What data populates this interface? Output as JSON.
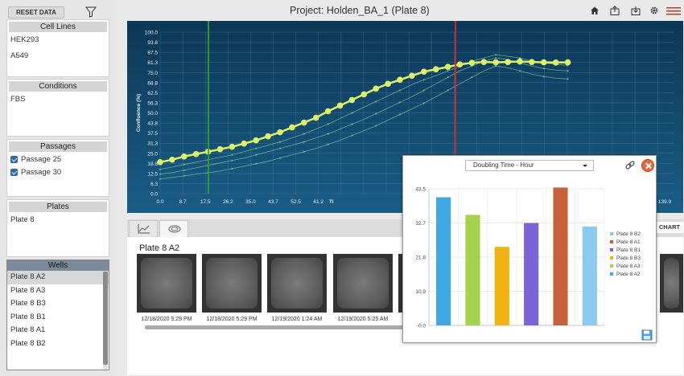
{
  "sidebar": {
    "reset_label": "RESET DATA",
    "cell_lines": {
      "title": "Cell Lines",
      "items": [
        "HEK293",
        "A549"
      ]
    },
    "conditions": {
      "title": "Conditions",
      "items": [
        "FBS"
      ]
    },
    "passages": {
      "title": "Passages",
      "items": [
        "Passage 25",
        "Passage 30"
      ]
    },
    "plates": {
      "title": "Plates",
      "items": [
        "Plate 8"
      ]
    },
    "wells": {
      "title": "Wells",
      "items": [
        "Plate 8 A2",
        "Plate 8 A3",
        "Plate 8 B3",
        "Plate 8 B1",
        "Plate 8 A1",
        "Plate 8 B2"
      ],
      "selected": "Plate 8 A2"
    }
  },
  "header": {
    "title": "Project: Holden_BA_1 (Plate 8)",
    "icons": [
      "home-icon",
      "export-icon",
      "download-icon",
      "settings-icon",
      "menu-icon"
    ]
  },
  "main_chart": {
    "ylabel": "Confluence (%)",
    "xlabel_partial": "Ti",
    "y_ticks": [
      "100.0",
      "93.8",
      "87.5",
      "81.3",
      "75.0",
      "68.8",
      "62.5",
      "56.3",
      "50.0",
      "43.8",
      "37.5",
      "31.3",
      "25.0",
      "18.8",
      "12.5",
      "6.3",
      "0.0"
    ],
    "x_ticks": [
      "0.0",
      "8.7",
      "17.5",
      "26.2",
      "35.0",
      "43.7",
      "52.5",
      "61.2"
    ],
    "x_tick_last": "139.9",
    "colors": {
      "primary": "#ddf06a",
      "secondary": "#8fd49b",
      "green_marker": "#2aa52a",
      "red_marker": "#e02424"
    }
  },
  "lower": {
    "tabs": [
      "chart-tab-icon",
      "image-tab-icon"
    ],
    "well_label": "Plate 8 A2",
    "chart_button": "CHART",
    "timestamps": [
      "12/18/2020 5:29 PM",
      "12/18/2020 5:29 PM",
      "12/19/2020 1:24 AM",
      "12/19/2020 5:25 AM"
    ]
  },
  "popup": {
    "metric_selected": "Doubling Time - Hour",
    "y_ticks": [
      "43.5",
      "32.7",
      "21.8",
      "10.9",
      "-0.0"
    ]
  },
  "chart_data": {
    "type": "bar",
    "title": "",
    "categories": [
      "Plate 8 A2",
      "Plate 8 A3",
      "Plate 8 B3",
      "Plate 8 B1",
      "Plate 8 A1",
      "Plate 8 B2"
    ],
    "values": [
      40.8,
      35.2,
      25.0,
      32.6,
      43.9,
      31.5
    ],
    "colors": [
      "#3fa7e1",
      "#a4d24c",
      "#f0b20e",
      "#7b63d8",
      "#c8613b",
      "#8ccaf0"
    ],
    "legend": [
      "Plate 8 B2",
      "Plate 8 A1",
      "Plate 8 B1",
      "Plate 8 B3",
      "Plate 8 A3",
      "Plate 8 A2"
    ],
    "legend_colors": [
      "#8ccaf0",
      "#c8613b",
      "#7b63d8",
      "#f0b20e",
      "#a4d24c",
      "#3fa7e1"
    ],
    "ylim": [
      0,
      43.5
    ],
    "xlabel": "",
    "ylabel": "",
    "legend_position": "right"
  }
}
